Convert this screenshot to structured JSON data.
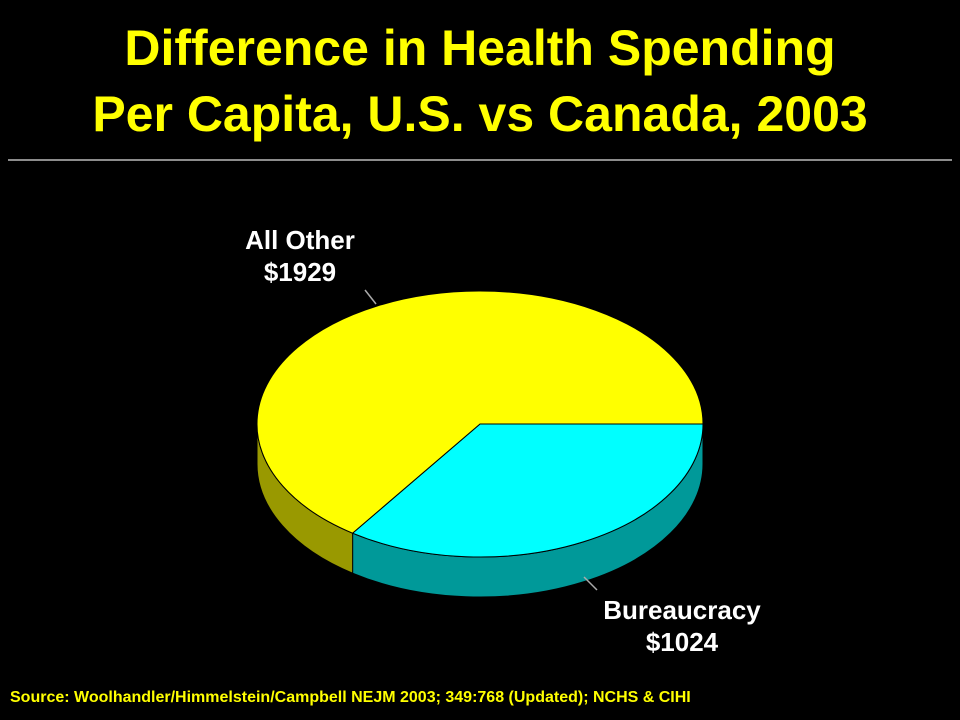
{
  "chart_data": {
    "type": "pie",
    "title": [
      "Difference in Health Spending",
      "Per Capita, U.S. vs Canada, 2003"
    ],
    "categories": [
      "All Other",
      "Bureaucracy"
    ],
    "values": [
      1929,
      1024
    ],
    "value_labels": [
      "$1929",
      "$1024"
    ],
    "colors": [
      "#ffff00",
      "#00ffff"
    ],
    "source": "Source: Woolhandler/Himmelstein/Campbell NEJM 2003; 349:768 (Updated); NCHS & CIHI"
  }
}
